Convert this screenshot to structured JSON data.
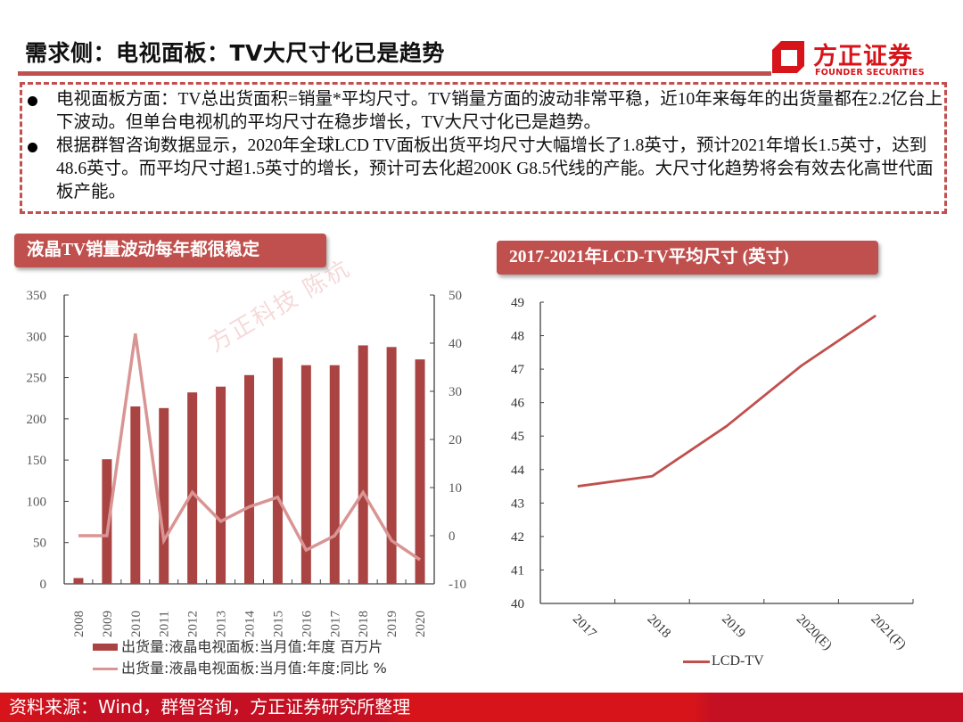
{
  "header": {
    "title": "需求侧：电视面板：TV大尺寸化已是趋势",
    "logo_cn": "方正证券",
    "logo_en": "FOUNDER SECURITIES",
    "accent_color": "#c0504d",
    "brand_color": "#d7141a"
  },
  "bullets": [
    {
      "text": "电视面板方面：TV总出货面积=销量*平均尺寸。TV销量方面的波动非常平稳，近10年来每年的出货量都在2.2亿台上下波动。但单台电视机的平均尺寸在稳步增长，TV大尺寸化已是趋势。"
    },
    {
      "text": "根据群智咨询数据显示，2020年全球LCD TV面板出货平均尺寸大幅增长了1.8英寸，预计2021年增长1.5英寸，达到48.6英寸。而平均尺寸超1.5英寸的增长，预计可去化超200K G8.5代线的产能。大尺寸化趋势将会有效去化高世代面板产能。"
    }
  ],
  "left_chart": {
    "tag": "液晶TV销量波动每年都很稳定",
    "watermark": "方正科技 陈杭",
    "legend": [
      "出货量:液晶电视面板:当月值:年度 百万片",
      "出货量:液晶电视面板:当月值:年度:同比 %"
    ]
  },
  "right_chart": {
    "tag": "2017-2021年LCD-TV平均尺寸 (英寸)",
    "legend": "LCD-TV"
  },
  "footer": {
    "source": "资料来源：Wind，群智咨询，方正证券研究所整理"
  },
  "chart_data": [
    {
      "type": "bar",
      "title": "液晶TV销量波动每年都很稳定",
      "categories": [
        "2008",
        "2009",
        "2010",
        "2011",
        "2012",
        "2013",
        "2014",
        "2015",
        "2016",
        "2017",
        "2018",
        "2019",
        "2020"
      ],
      "series": [
        {
          "name": "出货量:液晶电视面板:当月值:年度 百万片",
          "type": "bar",
          "axis": "left",
          "color": "#a94442",
          "values": [
            7,
            151,
            215,
            213,
            232,
            239,
            253,
            274,
            265,
            265,
            289,
            287,
            272
          ]
        },
        {
          "name": "出货量:液晶电视面板:当月值:年度:同比 %",
          "type": "line",
          "axis": "right",
          "color": "#d99594",
          "values": [
            0,
            0,
            42,
            -1,
            9,
            3,
            6,
            8,
            -3,
            0,
            9,
            -1,
            -5
          ]
        }
      ],
      "ylim": [
        0,
        350
      ],
      "yticks": [
        0,
        50,
        100,
        150,
        200,
        250,
        300,
        350
      ],
      "y2lim": [
        -10,
        50
      ],
      "y2ticks": [
        -10,
        0,
        10,
        20,
        30,
        40,
        50
      ],
      "xlabel": "",
      "ylabel": "",
      "grid": false,
      "legend_position": "bottom"
    },
    {
      "type": "line",
      "title": "2017-2021年LCD-TV平均尺寸 (英寸)",
      "categories": [
        "2017",
        "2018",
        "2019",
        "2020(E)",
        "2021(F)"
      ],
      "series": [
        {
          "name": "LCD-TV",
          "color": "#c0504d",
          "values": [
            43.5,
            43.8,
            45.3,
            47.1,
            48.6
          ]
        }
      ],
      "ylim": [
        40,
        49
      ],
      "yticks": [
        40,
        41,
        42,
        43,
        44,
        45,
        46,
        47,
        48,
        49
      ],
      "xlabel": "",
      "ylabel": "",
      "grid": false,
      "legend_position": "bottom"
    }
  ]
}
